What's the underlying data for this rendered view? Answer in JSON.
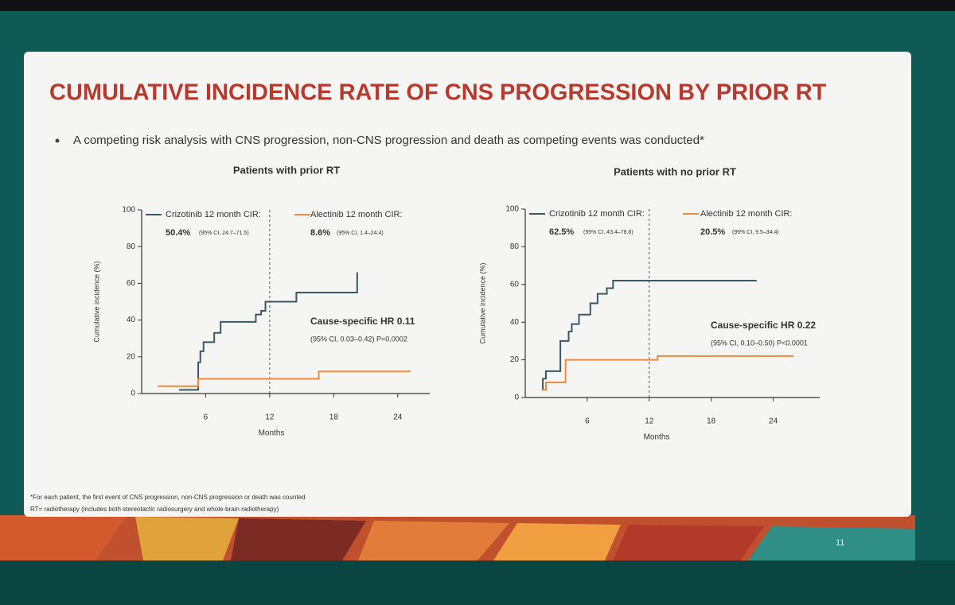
{
  "title": "CUMULATIVE INCIDENCE RATE OF CNS PROGRESSION BY PRIOR RT",
  "bullet": "A competing risk analysis with CNS progression, non-CNS progression and death as competing events was conducted*",
  "footnotes": [
    "*For each patient, the first event of CNS progression, non-CNS progression or death was counted",
    "RT= radiotherapy (includes both stereotactic radiosurgery and whole-brain radiotherapy)"
  ],
  "page_number": "11",
  "chart_data": [
    {
      "type": "line",
      "step": true,
      "title": "Patients with prior RT",
      "xlabel": "Months",
      "ylabel": "Cumulative incidence (%)",
      "xlim": [
        0,
        27
      ],
      "ylim": [
        0,
        100
      ],
      "xticks": [
        6,
        12,
        18,
        24
      ],
      "yticks": [
        0,
        20,
        40,
        60,
        80,
        100
      ],
      "vline": 12,
      "series": [
        {
          "name": "Crizotinib 12 month CIR:",
          "summary": "50.4%",
          "summary_ci": "(95% CI, 24.7–71.5)",
          "color": "#3b5866",
          "x": [
            3.5,
            5.3,
            5.5,
            5.8,
            6.8,
            7.4,
            10.7,
            11.2,
            11.6,
            14.5,
            20.2
          ],
          "values": [
            2,
            17,
            23,
            28,
            33,
            39,
            43,
            45,
            50,
            55,
            66
          ]
        },
        {
          "name": "Alectinib 12 month CIR:",
          "summary": "8.6%",
          "summary_ci": "(95% CI, 1.4–24.4)",
          "color": "#f08a3c",
          "x": [
            1.5,
            5.3,
            16.6,
            25.2
          ],
          "values": [
            4,
            8,
            12,
            12
          ]
        }
      ],
      "annotations": [
        "Cause-specific HR 0.11",
        "(95% CI, 0.03–0.42) P=0.0002"
      ]
    },
    {
      "type": "line",
      "step": true,
      "title": "Patients with no prior RT",
      "xlabel": "Months",
      "ylabel": "Cumulative incidence (%)",
      "xlim": [
        0,
        28.5
      ],
      "ylim": [
        0,
        100
      ],
      "xticks": [
        6,
        12,
        18,
        24
      ],
      "yticks": [
        0,
        20,
        40,
        60,
        80,
        100
      ],
      "vline": 12,
      "series": [
        {
          "name": "Crizotinib 12 month CIR:",
          "summary": "62.5%",
          "summary_ci": "(95% CI, 43.4–78.8)",
          "color": "#3b5866",
          "x": [
            1.6,
            1.7,
            2.0,
            3.4,
            4.2,
            4.5,
            5.2,
            6.3,
            7.0,
            7.9,
            8.5,
            22.4
          ],
          "values": [
            4,
            10,
            14,
            30,
            35,
            39,
            44,
            50,
            55,
            58,
            62,
            62
          ]
        },
        {
          "name": "Alectinib 12 month CIR:",
          "summary": "20.5%",
          "summary_ci": "(95% CI, 9.5–34.4)",
          "color": "#f08a3c",
          "x": [
            1.6,
            2.0,
            3.9,
            11.7,
            12.8,
            26.0
          ],
          "values": [
            4,
            8,
            20,
            20,
            22,
            22
          ]
        }
      ],
      "annotations": [
        "Cause-specific HR 0.22",
        "(95% CI, 0.10–0.50)  P<0.0001"
      ]
    }
  ]
}
